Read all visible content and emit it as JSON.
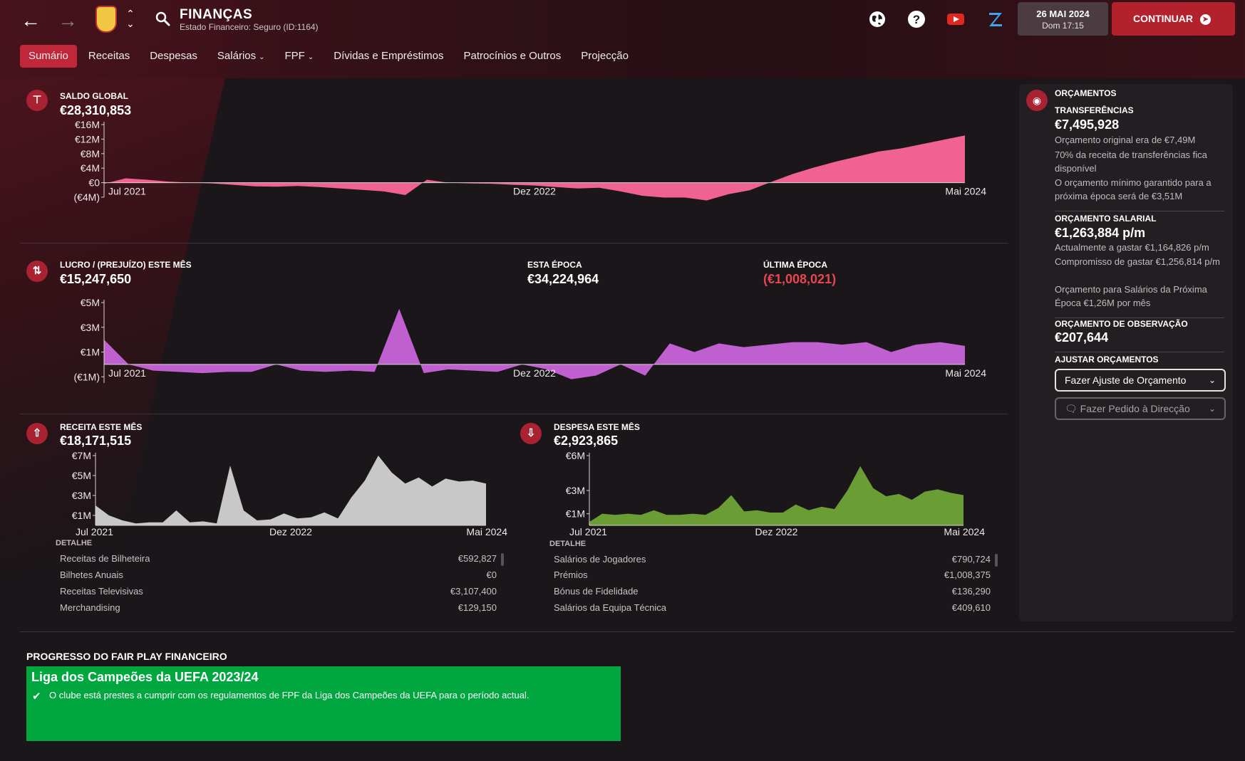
{
  "header": {
    "title": "FINANÇAS",
    "subtitle": "Estado Financeiro: Seguro (ID:1164)",
    "date": "26 MAI 2024",
    "time": "Dom 17:15",
    "continue_label": "CONTINUAR"
  },
  "icons": {
    "back": "back-arrow-icon",
    "forward": "forward-arrow-icon",
    "search": "search-icon",
    "globe": "globe-icon",
    "help": "help-icon",
    "youtube": "youtube-icon",
    "z": "z-logo-icon"
  },
  "colors": {
    "accent": "#c0283a",
    "saldo_fill": "#f06292",
    "lucro_fill": "#c060d0",
    "receita_fill": "#c8c8c8",
    "despesa_fill": "#6a9e35",
    "negative": "#e8474f",
    "fpp_green": "#00a63e"
  },
  "tabs": [
    {
      "label": "Sumário",
      "active": true
    },
    {
      "label": "Receitas"
    },
    {
      "label": "Despesas"
    },
    {
      "label": "Salários",
      "dropdown": true
    },
    {
      "label": "FPF",
      "dropdown": true
    },
    {
      "label": "Dívidas e Empréstimos"
    },
    {
      "label": "Patrocínios e Outros"
    },
    {
      "label": "Projecção"
    }
  ],
  "saldo": {
    "label": "SALDO GLOBAL",
    "value": "€28,310,853"
  },
  "lucro": {
    "label": "LUCRO / (PREJUÍZO) ESTE MÊS",
    "value": "€15,247,650",
    "season_label": "ESTA ÉPOCA",
    "season_value": "€34,224,964",
    "last_label": "ÚLTIMA ÉPOCA",
    "last_value": "(€1,008,021)"
  },
  "receita": {
    "label": "RECEITA ESTE MÊS",
    "value": "€18,171,515",
    "detail_label": "DETALHE",
    "rows": [
      {
        "name": "Receitas de Bilheteira",
        "value": "€592,827"
      },
      {
        "name": "Bilhetes Anuais",
        "value": "€0"
      },
      {
        "name": "Receitas Televisivas",
        "value": "€3,107,400"
      },
      {
        "name": "Merchandising",
        "value": "€129,150"
      }
    ]
  },
  "despesa": {
    "label": "DESPESA ESTE MÊS",
    "value": "€2,923,865",
    "detail_label": "DETALHE",
    "rows": [
      {
        "name": "Salários de Jogadores",
        "value": "€790,724"
      },
      {
        "name": "Prémios",
        "value": "€1,008,375"
      },
      {
        "name": "Bónus de Fidelidade",
        "value": "€136,290"
      },
      {
        "name": "Salários da Equipa Técnica",
        "value": "€409,610"
      }
    ]
  },
  "fpp": {
    "title": "PROGRESSO DO FAIR PLAY FINANCEIRO",
    "heading": "Liga dos Campeões da UEFA 2023/24",
    "text": "O clube está prestes a cumprir com os regulamentos de FPF da Liga dos Campeões da UEFA para o período actual."
  },
  "budgets": {
    "title": "ORÇAMENTOS",
    "transfers_label": "TRANSFERÊNCIAS",
    "transfers_value": "€7,495,928",
    "transfers_line1": "Orçamento original era de €7,49M",
    "transfers_line2": "70% da receita de transferências fica disponível",
    "transfers_line3": "O orçamento mínimo garantido para a próxima época será de €3,51M",
    "wage_label": "ORÇAMENTO SALARIAL",
    "wage_value": "€1,263,884 p/m",
    "wage_line1": "Actualmente a gastar €1,164,826 p/m",
    "wage_line2": "Compromisso de gastar €1,256,814 p/m",
    "wage_line3": "Orçamento para Salários da Próxima Época €1,26M por mês",
    "scout_label": "ORÇAMENTO DE OBSERVAÇÃO",
    "scout_value": "€207,644",
    "adjust_label": "AJUSTAR ORÇAMENTOS",
    "adjust_button": "Fazer Ajuste de Orçamento",
    "request_button": "Fazer Pedido à Direcção"
  },
  "chart_data": [
    {
      "type": "area",
      "name": "saldo",
      "x_start": "Jul 2021",
      "x_end": "Mai 2024",
      "x_labels": [
        "Jul 2021",
        "Dez 2022",
        "Mai 2024"
      ],
      "y_ticks": [
        "€16M",
        "€12M",
        "€8M",
        "€4M",
        "€0",
        "(€4M)"
      ],
      "ylim": [
        -4,
        16
      ],
      "values": [
        -0.3,
        1.2,
        0.8,
        0.3,
        0.0,
        -0.2,
        -0.6,
        -1.0,
        -1.1,
        -0.9,
        -1.2,
        -1.6,
        -2.0,
        -2.4,
        -3.4,
        0.8,
        0.0,
        -0.2,
        -0.3,
        -0.6,
        -0.8,
        -1.2,
        -1.6,
        -1.4,
        -2.4,
        -3.6,
        -4.1,
        -4.1,
        -4.9,
        -3.2,
        -2.1,
        0.2,
        2.4,
        4.2,
        5.8,
        7.2,
        8.6,
        9.4,
        10.6,
        11.8,
        13.0
      ]
    },
    {
      "type": "area",
      "name": "lucro",
      "x_labels": [
        "Jul 2021",
        "Dez 2022",
        "Mai 2024"
      ],
      "y_ticks": [
        "€5M",
        "€3M",
        "€1M",
        "(€1M)"
      ],
      "ylim": [
        -1.5,
        5
      ],
      "values": [
        2.0,
        0.0,
        -0.5,
        -0.6,
        -0.7,
        -0.6,
        -0.6,
        0.0,
        -0.5,
        -0.6,
        -0.5,
        -0.6,
        4.5,
        -0.7,
        -0.4,
        -0.5,
        -0.6,
        0.0,
        -0.4,
        -1.2,
        -0.9,
        0.0,
        -0.9,
        1.7,
        1.0,
        1.7,
        1.4,
        1.6,
        1.8,
        1.8,
        1.6,
        1.8,
        1.0,
        1.6,
        1.8,
        1.5
      ]
    },
    {
      "type": "area",
      "name": "receita",
      "x_labels": [
        "Jul 2021",
        "Dez 2022",
        "Mai 2024"
      ],
      "y_ticks": [
        "€7M",
        "€5M",
        "€3M",
        "€1M"
      ],
      "ylim": [
        0,
        7
      ],
      "values": [
        2.0,
        1.0,
        0.5,
        0.2,
        0.3,
        0.3,
        1.5,
        0.3,
        0.4,
        0.2,
        6.0,
        1.5,
        0.5,
        0.6,
        1.2,
        0.7,
        0.8,
        1.3,
        0.7,
        2.8,
        4.5,
        7.0,
        5.3,
        4.2,
        4.8,
        3.9,
        4.7,
        4.4,
        4.5,
        4.2
      ]
    },
    {
      "type": "area",
      "name": "despesa",
      "x_labels": [
        "Jul 2021",
        "Dez 2022",
        "Mai 2024"
      ],
      "y_ticks": [
        "€6M",
        "€3M",
        "€1M"
      ],
      "ylim": [
        0,
        6
      ],
      "values": [
        0.3,
        1.0,
        0.9,
        1.0,
        0.9,
        1.3,
        0.9,
        0.9,
        1.0,
        0.9,
        1.5,
        2.6,
        1.2,
        1.3,
        1.1,
        1.1,
        1.8,
        1.3,
        1.6,
        1.4,
        3.0,
        5.1,
        3.2,
        2.5,
        2.7,
        2.2,
        2.9,
        3.1,
        2.8,
        2.6
      ]
    }
  ]
}
